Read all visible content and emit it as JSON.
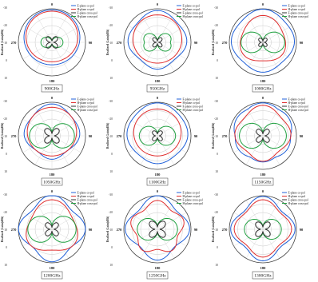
{
  "chart_data": [
    {
      "type": "polar-line",
      "title": "900GHz",
      "angle_ticks": [
        "0",
        "30",
        "60",
        "90",
        "120",
        "150",
        "180",
        "210",
        "240",
        "270",
        "300",
        "330"
      ],
      "r_ticks": [
        "-30",
        "-20",
        "-10",
        "0",
        "10"
      ],
      "ylabel": "Realized Gain(dBi)",
      "legend": [
        "E-plane co-pol",
        "H-plane co-pol",
        "E-plane cross-pol",
        "H-plane cross-pol"
      ]
    },
    {
      "type": "polar-line",
      "title": "950GHz",
      "angle_ticks": [
        "0",
        "30",
        "60",
        "90",
        "120",
        "150",
        "180",
        "210",
        "240",
        "270",
        "300",
        "330"
      ],
      "r_ticks": [
        "-30",
        "-20",
        "-10",
        "0",
        "10"
      ],
      "ylabel": "Realized Gain(dBi)",
      "legend": [
        "E-plane co-pol",
        "H-plane co-pol",
        "E-plane cross-pol",
        "H-plane cross-pol"
      ]
    },
    {
      "type": "polar-line",
      "title": "1000GHz",
      "angle_ticks": [
        "0",
        "30",
        "60",
        "90",
        "120",
        "150",
        "180",
        "210",
        "240",
        "270",
        "300",
        "330"
      ],
      "r_ticks": [
        "-30",
        "-20",
        "-10",
        "0",
        "10"
      ],
      "ylabel": "Realized Gain(dBi)",
      "legend": [
        "E-plane co-pol",
        "H-plane co-pol",
        "E-plane cross-pol",
        "H-plane cross-pol"
      ]
    },
    {
      "type": "polar-line",
      "title": "1050GHz",
      "angle_ticks": [
        "0",
        "30",
        "60",
        "90",
        "120",
        "150",
        "180",
        "210",
        "240",
        "270",
        "300",
        "330"
      ],
      "r_ticks": [
        "-30",
        "-20",
        "-10",
        "0",
        "10"
      ],
      "ylabel": "Realized Gain(dBi)",
      "legend": [
        "E-plane co-pol",
        "H-plane co-pol",
        "E-plane cross-pol",
        "H-plane cross-pol"
      ]
    },
    {
      "type": "polar-line",
      "title": "1100GHz",
      "angle_ticks": [
        "0",
        "30",
        "60",
        "90",
        "120",
        "150",
        "180",
        "210",
        "240",
        "270",
        "300",
        "330"
      ],
      "r_ticks": [
        "-30",
        "-20",
        "-10",
        "0",
        "10"
      ],
      "ylabel": "Realized Gain(dBi)",
      "legend": [
        "E-plane co-pol",
        "H-plane co-pol",
        "E-plane cross-pol",
        "H-plane cross-pol"
      ]
    },
    {
      "type": "polar-line",
      "title": "1150GHz",
      "angle_ticks": [
        "0",
        "30",
        "60",
        "90",
        "120",
        "150",
        "180",
        "210",
        "240",
        "270",
        "300",
        "330"
      ],
      "r_ticks": [
        "-30",
        "-20",
        "-10",
        "0",
        "10"
      ],
      "ylabel": "Realized Gain(dBi)",
      "legend": [
        "E-plane co-pol",
        "H-plane co-pol",
        "E-plane cross-pol",
        "H-plane cross-pol"
      ]
    },
    {
      "type": "polar-line",
      "title": "1200GHz",
      "angle_ticks": [
        "0",
        "30",
        "60",
        "90",
        "120",
        "150",
        "180",
        "210",
        "240",
        "270",
        "300",
        "330"
      ],
      "r_ticks": [
        "-30",
        "-20",
        "-10",
        "0",
        "10"
      ],
      "ylabel": "Realized Gain(dBi)",
      "legend": [
        "E-plane co-pol",
        "H-plane co-pol",
        "E-plane cross-pol",
        "H-plane cross-pol"
      ]
    },
    {
      "type": "polar-line",
      "title": "1250GHz",
      "angle_ticks": [
        "0",
        "30",
        "60",
        "90",
        "120",
        "150",
        "180",
        "210",
        "240",
        "270",
        "300",
        "330"
      ],
      "r_ticks": [
        "-30",
        "-20",
        "-10",
        "0",
        "10"
      ],
      "ylabel": "Realized Gain(dBi)",
      "legend": [
        "E-plane co-pol",
        "H-plane co-pol",
        "E-plane cross-pol",
        "H-plane cross-pol"
      ]
    },
    {
      "type": "polar-line",
      "title": "1300GHz",
      "angle_ticks": [
        "0",
        "30",
        "60",
        "90",
        "120",
        "150",
        "180",
        "210",
        "240",
        "270",
        "300",
        "330"
      ],
      "r_ticks": [
        "-30",
        "-20",
        "-10",
        "0",
        "10"
      ],
      "ylabel": "Realized Gain(dBi)",
      "legend": [
        "E-plane co-pol",
        "H-plane co-pol",
        "E-plane cross-pol",
        "H-plane cross-pol"
      ]
    }
  ],
  "colors": {
    "e_co": "#2060d8",
    "h_co": "#e03030",
    "e_cross": "#303030",
    "h_cross": "#20a040"
  }
}
